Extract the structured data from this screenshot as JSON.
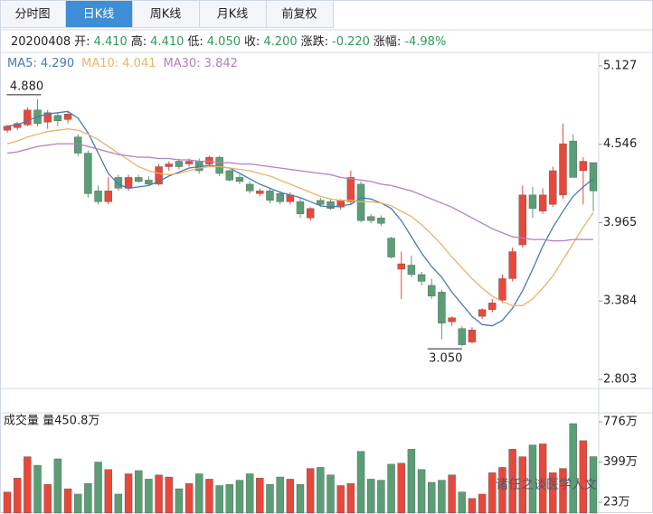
{
  "tabs": [
    "分时图",
    "日K线",
    "周K线",
    "月K线",
    "前复权"
  ],
  "active_tab": 1,
  "info": {
    "date": "20200408",
    "items": [
      {
        "label": "开:",
        "value": "4.410"
      },
      {
        "label": "高:",
        "value": "4.410"
      },
      {
        "label": "低:",
        "value": "4.050"
      },
      {
        "label": "收:",
        "value": "4.200"
      },
      {
        "label": "涨跌:",
        "value": "-0.220"
      },
      {
        "label": "涨幅:",
        "value": "-4.98%"
      }
    ]
  },
  "watermark": "诸任之谈医学人文",
  "chart_data": [
    {
      "type": "candlestick",
      "up_color": "#e8483b",
      "down_color": "#5a9e75",
      "max_label": "4.880",
      "min_label": "3.050",
      "ylim": [
        2.736,
        5.227
      ],
      "yticks": [
        5.127,
        4.546,
        3.965,
        3.384,
        2.803
      ],
      "grid": false,
      "open": [
        4.65,
        4.67,
        4.69,
        4.8,
        4.71,
        4.76,
        4.73,
        4.6,
        4.48,
        4.2,
        4.12,
        4.3,
        4.22,
        4.3,
        4.28,
        4.25,
        4.38,
        4.42,
        4.4,
        4.42,
        4.4,
        4.45,
        4.35,
        4.3,
        4.25,
        4.18,
        4.2,
        4.18,
        4.12,
        4.12,
        4.0,
        4.13,
        4.12,
        4.08,
        4.12,
        4.25,
        4.01,
        4.0,
        3.85,
        3.62,
        3.65,
        3.58,
        3.5,
        3.45,
        3.23,
        3.18,
        3.08,
        3.27,
        3.32,
        3.39,
        3.55,
        3.8,
        4.17,
        4.05,
        4.1,
        4.17,
        4.57,
        4.35,
        4.41
      ],
      "high": [
        4.69,
        4.71,
        4.82,
        4.88,
        4.8,
        4.78,
        4.79,
        4.62,
        4.5,
        4.24,
        4.3,
        4.32,
        4.32,
        4.32,
        4.31,
        4.4,
        4.42,
        4.44,
        4.44,
        4.44,
        4.46,
        4.46,
        4.36,
        4.32,
        4.27,
        4.22,
        4.22,
        4.2,
        4.19,
        4.15,
        4.08,
        4.15,
        4.14,
        4.14,
        4.35,
        4.27,
        4.03,
        4.02,
        3.86,
        3.75,
        3.72,
        3.6,
        3.55,
        3.47,
        3.27,
        3.2,
        3.19,
        3.33,
        3.4,
        3.58,
        3.78,
        4.24,
        4.23,
        4.22,
        4.38,
        4.7,
        4.62,
        4.45,
        4.41
      ],
      "low": [
        4.63,
        4.65,
        4.68,
        4.68,
        4.66,
        4.68,
        4.7,
        4.46,
        4.15,
        4.1,
        4.1,
        4.2,
        4.2,
        4.26,
        4.24,
        4.24,
        4.35,
        4.36,
        4.38,
        4.33,
        4.38,
        4.31,
        4.27,
        4.25,
        4.18,
        4.16,
        4.11,
        4.1,
        4.1,
        4.0,
        3.98,
        4.08,
        4.06,
        4.06,
        4.1,
        3.97,
        3.96,
        3.94,
        3.7,
        3.4,
        3.56,
        3.5,
        3.4,
        3.1,
        3.2,
        3.05,
        3.07,
        3.25,
        3.3,
        3.37,
        3.53,
        3.78,
        4.0,
        4.03,
        4.08,
        4.14,
        4.3,
        4.1,
        4.05
      ],
      "close": [
        4.68,
        4.7,
        4.8,
        4.7,
        4.78,
        4.72,
        4.77,
        4.48,
        4.18,
        4.12,
        4.2,
        4.22,
        4.3,
        4.27,
        4.25,
        4.38,
        4.4,
        4.38,
        4.42,
        4.35,
        4.45,
        4.33,
        4.28,
        4.27,
        4.2,
        4.2,
        4.13,
        4.12,
        4.17,
        4.03,
        4.07,
        4.1,
        4.07,
        4.13,
        4.3,
        3.98,
        3.98,
        3.96,
        3.71,
        3.66,
        3.58,
        3.53,
        3.42,
        3.22,
        3.26,
        3.06,
        3.17,
        3.32,
        3.37,
        3.55,
        3.75,
        4.17,
        4.07,
        4.17,
        4.35,
        4.55,
        4.3,
        4.42,
        4.2
      ],
      "series": [
        {
          "name": "MA5: 4.290",
          "color": "#4a7ab5",
          "values": [
            4.68,
            4.69,
            4.72,
            4.75,
            4.77,
            4.78,
            4.79,
            4.74,
            4.63,
            4.48,
            4.33,
            4.25,
            4.22,
            4.23,
            4.24,
            4.27,
            4.31,
            4.34,
            4.37,
            4.38,
            4.39,
            4.38,
            4.37,
            4.33,
            4.29,
            4.25,
            4.22,
            4.19,
            4.17,
            4.15,
            4.12,
            4.09,
            4.08,
            4.09,
            4.1,
            4.15,
            4.14,
            4.11,
            4.07,
            3.98,
            3.86,
            3.74,
            3.64,
            3.56,
            3.45,
            3.36,
            3.27,
            3.21,
            3.2,
            3.24,
            3.33,
            3.46,
            3.62,
            3.79,
            3.93,
            4.05,
            4.16,
            4.23,
            4.29
          ]
        },
        {
          "name": "MA10: 4.041",
          "color": "#e8b46a",
          "values": [
            4.55,
            4.57,
            4.6,
            4.62,
            4.64,
            4.65,
            4.66,
            4.65,
            4.62,
            4.58,
            4.53,
            4.48,
            4.43,
            4.38,
            4.35,
            4.33,
            4.32,
            4.33,
            4.35,
            4.37,
            4.38,
            4.38,
            4.37,
            4.36,
            4.35,
            4.33,
            4.31,
            4.28,
            4.25,
            4.22,
            4.19,
            4.16,
            4.14,
            4.13,
            4.13,
            4.12,
            4.12,
            4.11,
            4.09,
            4.05,
            4.01,
            3.95,
            3.88,
            3.8,
            3.71,
            3.63,
            3.55,
            3.48,
            3.42,
            3.38,
            3.35,
            3.35,
            3.4,
            3.48,
            3.57,
            3.69,
            3.81,
            3.93,
            4.04
          ]
        },
        {
          "name": "MA30: 3.842",
          "color": "#b27fbf",
          "values": [
            4.48,
            4.49,
            4.51,
            4.53,
            4.54,
            4.55,
            4.55,
            4.55,
            4.53,
            4.51,
            4.49,
            4.47,
            4.46,
            4.45,
            4.45,
            4.44,
            4.44,
            4.43,
            4.43,
            4.42,
            4.42,
            4.41,
            4.41,
            4.4,
            4.4,
            4.39,
            4.38,
            4.37,
            4.36,
            4.35,
            4.34,
            4.33,
            4.32,
            4.3,
            4.29,
            4.28,
            4.27,
            4.25,
            4.24,
            4.22,
            4.2,
            4.17,
            4.14,
            4.11,
            4.08,
            4.04,
            4.0,
            3.96,
            3.92,
            3.89,
            3.86,
            3.85,
            3.84,
            3.84,
            3.83,
            3.83,
            3.84,
            3.84,
            3.84
          ]
        }
      ]
    },
    {
      "type": "bar",
      "title": "成交量 量450.8万",
      "ylim": [
        -78,
        861
      ],
      "yticks": [
        {
          "value": 776,
          "label": "776万"
        },
        {
          "value": 399,
          "label": "399万"
        },
        {
          "value": 23,
          "label": "23万"
        }
      ],
      "values": [
        120,
        250,
        450,
        370,
        190,
        430,
        150,
        100,
        200,
        400,
        330,
        100,
        290,
        320,
        240,
        280,
        260,
        150,
        200,
        290,
        240,
        180,
        190,
        230,
        290,
        250,
        190,
        260,
        240,
        190,
        340,
        350,
        280,
        180,
        200,
        500,
        240,
        230,
        380,
        390,
        520,
        330,
        210,
        230,
        280,
        120,
        60,
        100,
        300,
        350,
        520,
        450,
        560,
        570,
        300,
        340,
        760,
        600,
        450.8
      ]
    }
  ]
}
